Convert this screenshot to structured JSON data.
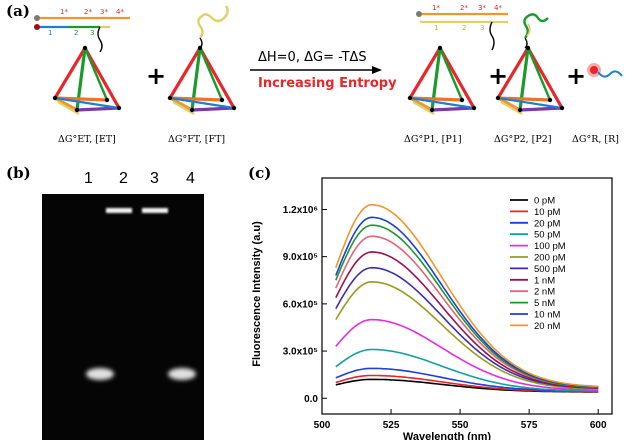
{
  "panel_a": {
    "label": "(a)",
    "reaction_top": "ΔH=0, ΔG= -TΔS",
    "reaction_bottom": "Increasing Entropy",
    "reaction_color": "#e8262a",
    "strand_numbers_et": [
      "1*",
      "2*",
      "3*",
      "4*"
    ],
    "strand_numbers_et_bottom": [
      "1",
      "2",
      "3"
    ],
    "strand_numbers_p1": [
      "1*",
      "2*",
      "3*",
      "4*"
    ],
    "strand_numbers_p1_bottom": [
      "1",
      "2",
      "3"
    ],
    "structures": [
      {
        "id": "ET",
        "caption": "ΔG°ET, [ET]"
      },
      {
        "id": "FT",
        "caption": "ΔG°FT, [FT]"
      },
      {
        "id": "P1",
        "caption": "ΔG°P1, [P1]"
      },
      {
        "id": "P2",
        "caption": "ΔG°P2, [P2]"
      },
      {
        "id": "R",
        "caption": "ΔG°R, [R]"
      }
    ],
    "plus": "+"
  },
  "panel_b": {
    "label": "(b)",
    "lanes": [
      "1",
      "2",
      "3",
      "4"
    ]
  },
  "panel_c": {
    "label": "(c)"
  },
  "chart_data": {
    "type": "line",
    "xlabel": "Wavelength (nm)",
    "ylabel": "Fluorescence Intensity (a.u)",
    "xlim": [
      500,
      605
    ],
    "ylim": [
      -100000,
      1400000
    ],
    "x_ticks": [
      500,
      525,
      550,
      575,
      600
    ],
    "y_ticks": [
      0,
      300000,
      600000,
      900000,
      1200000
    ],
    "y_tick_labels": [
      "0.0",
      "3.0x10⁵",
      "6.0x10⁵",
      "9.0x10⁵",
      "1.2x10⁶"
    ],
    "peak_wavelength": 518,
    "x_start": 505,
    "x_end": 600,
    "legend_placement": "top-right",
    "series": [
      {
        "name": "0 pM",
        "color": "#000000",
        "peak": 120000,
        "start": 85000,
        "end": 40000
      },
      {
        "name": "10 pM",
        "color": "#e8262a",
        "peak": 145000,
        "start": 100000,
        "end": 42000
      },
      {
        "name": "20 pM",
        "color": "#1c3fd6",
        "peak": 190000,
        "start": 130000,
        "end": 45000
      },
      {
        "name": "50 pM",
        "color": "#149f9f",
        "peak": 310000,
        "start": 200000,
        "end": 45000
      },
      {
        "name": "100 pM",
        "color": "#e62ae6",
        "peak": 500000,
        "start": 330000,
        "end": 50000
      },
      {
        "name": "200 pM",
        "color": "#9a9a1f",
        "peak": 740000,
        "start": 500000,
        "end": 55000
      },
      {
        "name": "500 pM",
        "color": "#3a2fa8",
        "peak": 830000,
        "start": 570000,
        "end": 60000
      },
      {
        "name": "1 nM",
        "color": "#a0104a",
        "peak": 930000,
        "start": 640000,
        "end": 62000
      },
      {
        "name": "2 nM",
        "color": "#e8627a",
        "peak": 1030000,
        "start": 700000,
        "end": 65000
      },
      {
        "name": "5 nM",
        "color": "#1a9a2a",
        "peak": 1100000,
        "start": 750000,
        "end": 65000
      },
      {
        "name": "10 nM",
        "color": "#1c3fd6",
        "peak": 1150000,
        "start": 780000,
        "end": 68000
      },
      {
        "name": "20 nM",
        "color": "#f0962a",
        "peak": 1230000,
        "start": 830000,
        "end": 70000
      }
    ]
  }
}
